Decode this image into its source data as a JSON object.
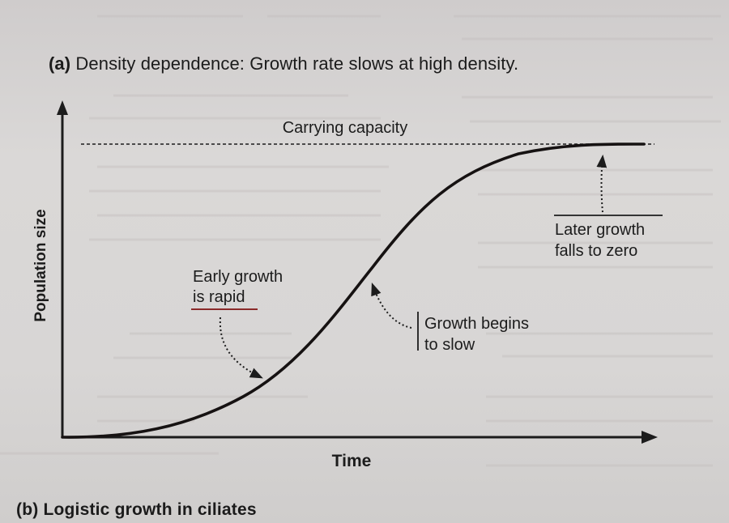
{
  "figure": {
    "panel_label": "(a)",
    "title": "Density dependence: Growth rate slows at high density."
  },
  "diagram": {
    "x_axis_label": "Time",
    "y_axis_label": "Population size",
    "carrying_capacity_label": "Carrying capacity",
    "annotations": {
      "early_growth": [
        "Early growth",
        "is rapid"
      ],
      "growth_slows": [
        "Growth begins",
        "to slow"
      ],
      "later_growth": [
        "Later growth",
        "falls to zero"
      ]
    },
    "colors": {
      "ink": "#1c1c1c",
      "curve": "#161212",
      "early_underline": "#8a2a2a"
    }
  },
  "next_panel": {
    "title": "(b) Logistic growth in ciliates"
  }
}
